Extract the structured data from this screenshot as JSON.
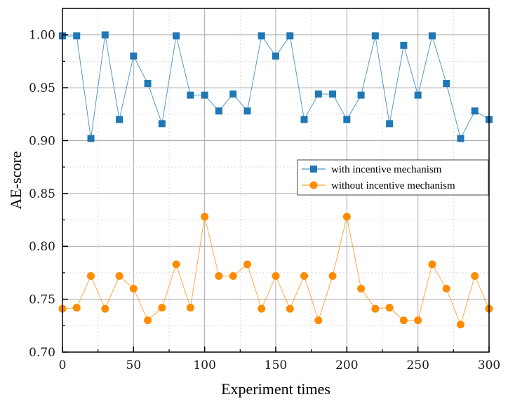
{
  "chart_data": {
    "type": "line",
    "xlabel": "Experiment times",
    "ylabel": "AE-score",
    "xlim": [
      0,
      300
    ],
    "ylim": [
      0.7,
      1.025
    ],
    "x_ticks": [
      "0",
      "50",
      "100",
      "150",
      "200",
      "250",
      "300"
    ],
    "y_ticks": [
      "0.70",
      "0.75",
      "0.80",
      "0.85",
      "0.90",
      "0.95",
      "1.00"
    ],
    "grid": true,
    "legend_position": "right-middle",
    "x": [
      0,
      10,
      20,
      30,
      40,
      50,
      60,
      70,
      80,
      90,
      100,
      110,
      120,
      130,
      140,
      150,
      160,
      170,
      180,
      190,
      200,
      210,
      220,
      230,
      240,
      250,
      260,
      270,
      280,
      290,
      300
    ],
    "series": [
      {
        "name": "with incentive mechanism",
        "color": "#1f77b4",
        "marker": "square",
        "values": [
          0.999,
          0.999,
          0.902,
          1.0,
          0.92,
          0.98,
          0.954,
          0.916,
          0.999,
          0.943,
          0.943,
          0.928,
          0.944,
          0.928,
          0.999,
          0.98,
          0.999,
          0.92,
          0.944,
          0.944,
          0.92,
          0.943,
          0.999,
          0.916,
          0.99,
          0.943,
          0.999,
          0.954,
          0.902,
          0.928,
          0.92
        ]
      },
      {
        "name": "without incentive mechanism",
        "color": "#ff8c00",
        "marker": "circle",
        "values": [
          0.741,
          0.742,
          0.772,
          0.741,
          0.772,
          0.76,
          0.73,
          0.742,
          0.783,
          0.742,
          0.828,
          0.772,
          0.772,
          0.783,
          0.741,
          0.772,
          0.741,
          0.772,
          0.73,
          0.772,
          0.828,
          0.76,
          0.741,
          0.742,
          0.73,
          0.73,
          0.783,
          0.76,
          0.726,
          0.772,
          0.741
        ]
      }
    ]
  }
}
